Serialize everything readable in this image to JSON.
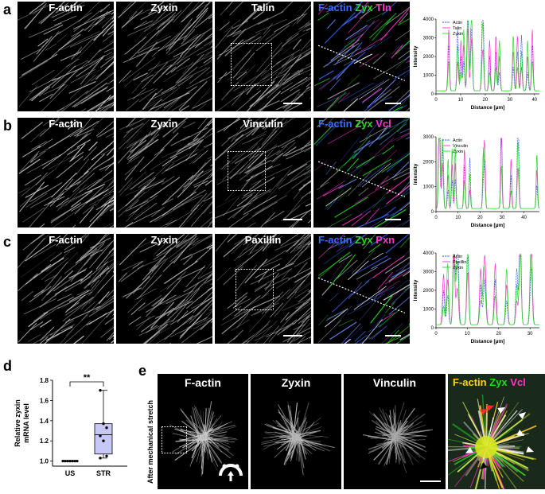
{
  "panel_labels": {
    "a": "a",
    "b": "b",
    "c": "c",
    "d": "d",
    "e": "e"
  },
  "row_a": {
    "c1": "F-actin",
    "c2": "Zyxin",
    "c3": "Talin",
    "m1": "F-actin",
    "m2": "Zyx",
    "m3": "Tln"
  },
  "row_b": {
    "c1": "F-actin",
    "c2": "Zyxin",
    "c3": "Vinculin",
    "m1": "F-actin",
    "m2": "Zyx",
    "m3": "Vcl"
  },
  "row_c": {
    "c1": "F-actin",
    "c2": "Zyxin",
    "c3": "Paxillin",
    "m1": "F-actin",
    "m2": "Zyx",
    "m3": "Pxn"
  },
  "row_e": {
    "c1": "F-actin",
    "c2": "Zyxin",
    "c3": "Vinculin",
    "m1": "F-actin",
    "m2": "Zyx",
    "m3": "Vcl",
    "side": "After mechanical stretch"
  },
  "colors": {
    "actin": "#3b6cff",
    "zyxin": "#22dd22",
    "magenta": "#ff33cc",
    "actin_e": "#ffd21a"
  },
  "chart_data": [
    {
      "type": "line",
      "xlabel": "Distance [µm]",
      "ylabel": "Intensity",
      "xlim": [
        0,
        42
      ],
      "ylim": [
        0,
        4000
      ],
      "xticks": [
        0,
        10,
        20,
        30,
        40
      ],
      "yticks": [
        0,
        1000,
        2000,
        3000,
        4000
      ],
      "series": [
        {
          "name": "Actin"
        },
        {
          "name": "Talin"
        },
        {
          "name": "Zyxin"
        }
      ]
    },
    {
      "type": "line",
      "xlabel": "Distance [µm]",
      "ylabel": "Intensity",
      "xlim": [
        0,
        47
      ],
      "ylim": [
        0,
        3000
      ],
      "xticks": [
        0,
        10,
        20,
        30,
        40
      ],
      "yticks": [
        0,
        1000,
        2000,
        3000
      ],
      "series": [
        {
          "name": "Actin"
        },
        {
          "name": "Vinculin"
        },
        {
          "name": "Zyxin"
        }
      ]
    },
    {
      "type": "line",
      "xlabel": "Distance [µm]",
      "ylabel": "Intensity",
      "xlim": [
        0,
        33
      ],
      "ylim": [
        0,
        4000
      ],
      "xticks": [
        0,
        10,
        20,
        30
      ],
      "yticks": [
        0,
        1000,
        2000,
        3000,
        4000
      ],
      "series": [
        {
          "name": "Actin"
        },
        {
          "name": "Paxillin"
        },
        {
          "name": "Zyxin"
        }
      ]
    },
    {
      "type": "box",
      "title": "",
      "ylabel": "Relative zyxin mRNA level",
      "categories": [
        "US",
        "STR"
      ],
      "ylim": [
        0.95,
        1.8
      ],
      "yticks": [
        1.0,
        1.2,
        1.4,
        1.6,
        1.8
      ],
      "significance": "**",
      "us_points": [
        1.0,
        1.0,
        1.0,
        1.0,
        1.0,
        1.0,
        1.0
      ],
      "str_points": [
        1.7,
        1.37,
        1.33,
        1.25,
        1.2,
        1.05,
        1.03
      ],
      "str_box": {
        "q1": 1.07,
        "median": 1.26,
        "q3": 1.37,
        "min": 1.03,
        "max": 1.7
      }
    }
  ]
}
